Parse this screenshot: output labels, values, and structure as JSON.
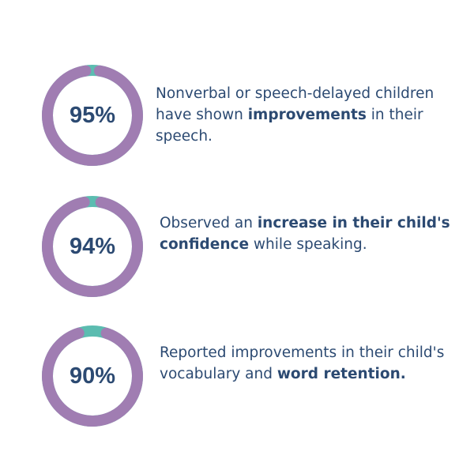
{
  "colors": {
    "ring": "#a07db2",
    "accent": "#5bbcb0",
    "text": "#2c4a72"
  },
  "stats": [
    {
      "label": "95%",
      "value": 95,
      "text": [
        {
          "t": "Nonverbal or speech-delayed children have shown "
        },
        {
          "t": "improvements",
          "bold": true
        },
        {
          "t": " in their speech."
        }
      ]
    },
    {
      "label": "94%",
      "value": 94,
      "text": [
        {
          "t": "Observed an "
        },
        {
          "t": "increase in their child's confidence",
          "bold": true
        },
        {
          "t": " while speaking."
        }
      ]
    },
    {
      "label": "90%",
      "value": 90,
      "text": [
        {
          "t": "Reported improvements in their child's vocabulary and "
        },
        {
          "t": "word retention.",
          "bold": true
        }
      ]
    }
  ]
}
